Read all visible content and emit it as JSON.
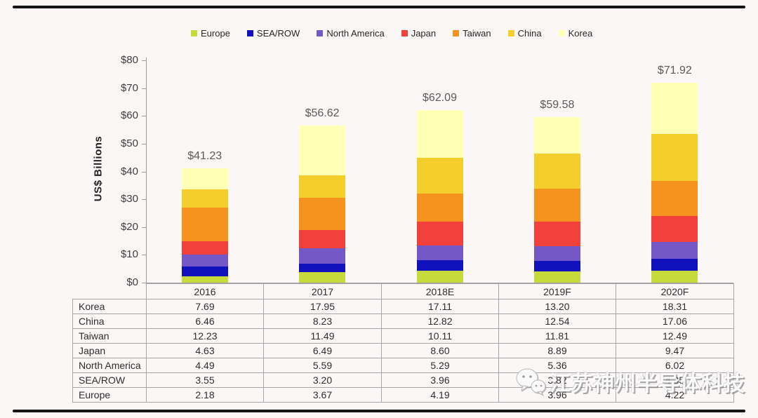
{
  "chart_data": {
    "type": "bar",
    "stacked": true,
    "title": "",
    "xlabel": "",
    "ylabel": "US$ Billions",
    "ylim": [
      0,
      80
    ],
    "ytick_labels": [
      "$0",
      "$10",
      "$20",
      "$30",
      "$40",
      "$50",
      "$60",
      "$70",
      "$80"
    ],
    "grid": false,
    "legend_position": "top",
    "categories": [
      "2016",
      "2017",
      "2018E",
      "2019F",
      "2020F"
    ],
    "series": [
      {
        "name": "Europe",
        "color": "#c6da3c",
        "values": [
          2.18,
          3.67,
          4.19,
          3.96,
          4.22
        ]
      },
      {
        "name": "SEA/ROW",
        "color": "#1212bd",
        "values": [
          3.55,
          3.2,
          3.96,
          3.82,
          4.35
        ]
      },
      {
        "name": "North America",
        "color": "#7558c8",
        "values": [
          4.49,
          5.59,
          5.29,
          5.36,
          6.02
        ]
      },
      {
        "name": "Japan",
        "color": "#f2413b",
        "values": [
          4.63,
          6.49,
          8.6,
          8.89,
          9.47
        ]
      },
      {
        "name": "Taiwan",
        "color": "#f6921e",
        "values": [
          12.23,
          11.49,
          10.11,
          11.81,
          12.49
        ]
      },
      {
        "name": "China",
        "color": "#f4cf2b",
        "values": [
          6.46,
          8.23,
          12.82,
          12.54,
          17.06
        ]
      },
      {
        "name": "Korea",
        "color": "#ffffb5",
        "values": [
          7.69,
          17.95,
          17.11,
          13.2,
          18.31
        ]
      }
    ],
    "totals": [
      41.23,
      56.62,
      62.09,
      59.58,
      71.92
    ],
    "total_labels": [
      "$41.23",
      "$56.62",
      "$62.09",
      "$59.58",
      "$71.92"
    ]
  },
  "legend": {
    "items": [
      "Europe",
      "SEA/ROW",
      "North America",
      "Japan",
      "Taiwan",
      "China",
      "Korea"
    ]
  },
  "table": {
    "col_headers": [
      "2016",
      "2017",
      "2018E",
      "2019F",
      "2020F"
    ],
    "rows": [
      {
        "label": "Korea",
        "values": [
          "7.69",
          "17.95",
          "17.11",
          "13.20",
          "18.31"
        ]
      },
      {
        "label": "China",
        "values": [
          "6.46",
          "8.23",
          "12.82",
          "12.54",
          "17.06"
        ]
      },
      {
        "label": "Taiwan",
        "values": [
          "12.23",
          "11.49",
          "10.11",
          "11.81",
          "12.49"
        ]
      },
      {
        "label": "Japan",
        "values": [
          "4.63",
          "6.49",
          "8.60",
          "8.89",
          "9.47"
        ]
      },
      {
        "label": "North America",
        "values": [
          "4.49",
          "5.59",
          "5.29",
          "5.36",
          "6.02"
        ]
      },
      {
        "label": "SEA/ROW",
        "values": [
          "3.55",
          "3.20",
          "3.96",
          "3.82",
          "4.35"
        ]
      },
      {
        "label": "Europe",
        "values": [
          "2.18",
          "3.67",
          "4.19",
          "3.96",
          "4.22"
        ]
      }
    ]
  },
  "watermark": {
    "icon": "wechat-logo",
    "text": "江苏神州半导体科技"
  }
}
